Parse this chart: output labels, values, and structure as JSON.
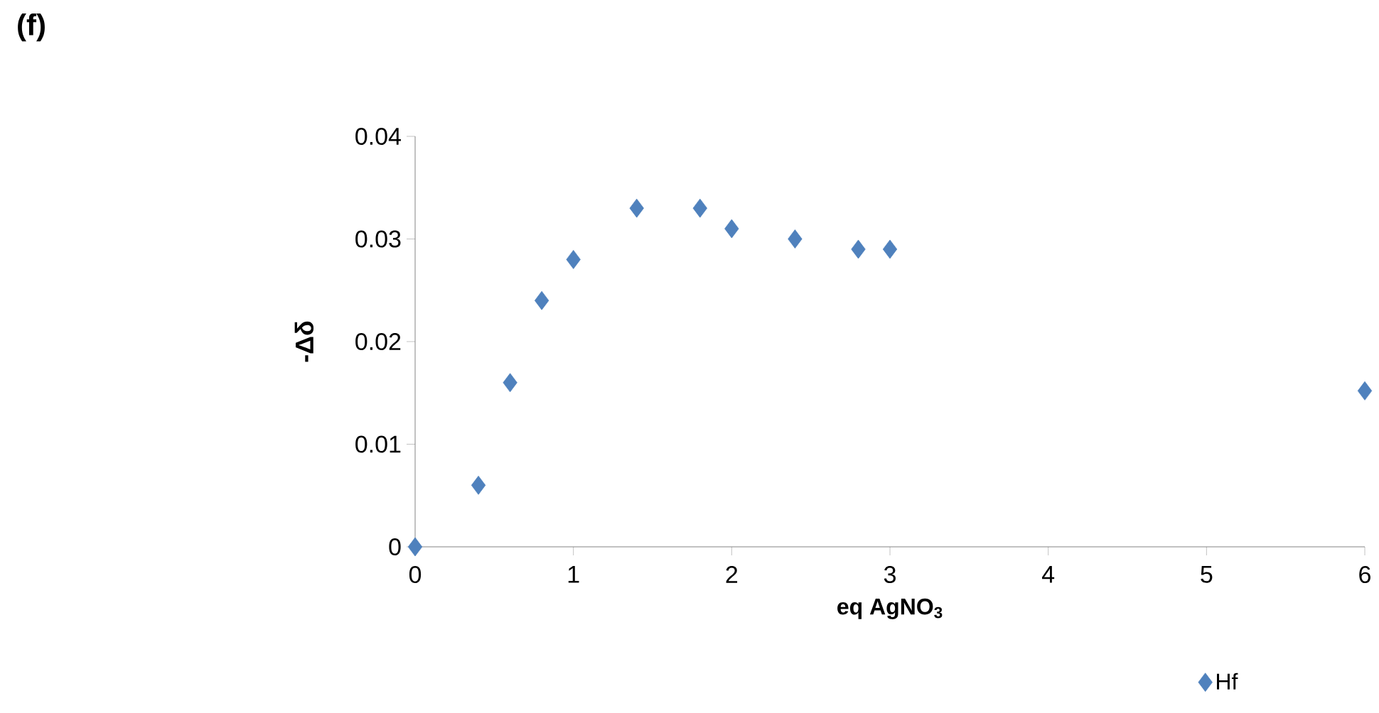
{
  "chart_data": {
    "type": "scatter",
    "title": "(f)",
    "xlabel": "eq AgNO$_{3}$",
    "ylabel": "-Δδ",
    "x": [
      0,
      0.4,
      0.6,
      0.8,
      1,
      1.4,
      1.8,
      2,
      2.4,
      2.8,
      3,
      6
    ],
    "series": [
      {
        "name": "Hf",
        "color": "#4f81bd",
        "values": [
          0,
          0.006,
          0.016,
          0.024,
          0.028,
          0.033,
          0.033,
          0.031,
          0.03,
          0.029,
          0.029,
          0.0152
        ]
      }
    ],
    "xlim": [
      0,
      6
    ],
    "ylim": [
      0,
      0.04
    ],
    "xticks": [
      0,
      1,
      2,
      3,
      4,
      5,
      6
    ],
    "yticks": [
      0,
      0.01,
      0.02,
      0.03,
      0.04
    ],
    "marker": "diamond",
    "legend": "bottom right",
    "grid": false
  }
}
